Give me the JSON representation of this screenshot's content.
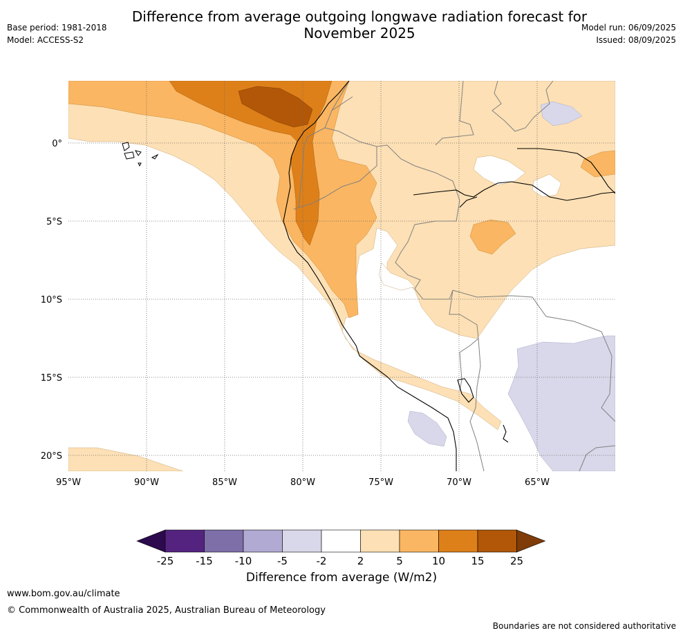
{
  "title_line1": "Difference from average outgoing longwave radiation forecast for",
  "title_line2": "November 2025",
  "base_period": "Base period: 1981-2018",
  "model": "Model: ACCESS-S2",
  "model_run": "Model run: 06/09/2025",
  "issued": "Issued: 08/09/2025",
  "map": {
    "lat_labels": [
      "0°",
      "5°S",
      "10°S",
      "15°S",
      "20°S"
    ],
    "lon_labels": [
      "95°W",
      "90°W",
      "85°W",
      "80°W",
      "75°W",
      "70°W",
      "65°W"
    ]
  },
  "colorbar": {
    "title": "Difference from average (W/m2)",
    "ticks": [
      "-25",
      "-15",
      "-10",
      "-5",
      "-2",
      "2",
      "5",
      "10",
      "15",
      "25"
    ],
    "colors": {
      "below_min": "#2d0a4e",
      "lt_-15": "#54237f",
      "lt_-10": "#7e6fa9",
      "lt_-5": "#b1aad2",
      "lt_-2": "#d8d8ea",
      "neutral": "#ffffff",
      "lt_5": "#fde0b5",
      "lt_10": "#fab662",
      "lt_15": "#de8019",
      "lt_25": "#b15707",
      "above_max": "#7f3b08"
    }
  },
  "footer": {
    "url": "www.bom.gov.au/climate",
    "copyright": "© Commonwealth of Australia 2025, Australian Bureau of Meteorology",
    "disclaimer": "Boundaries are not considered authoritative"
  }
}
